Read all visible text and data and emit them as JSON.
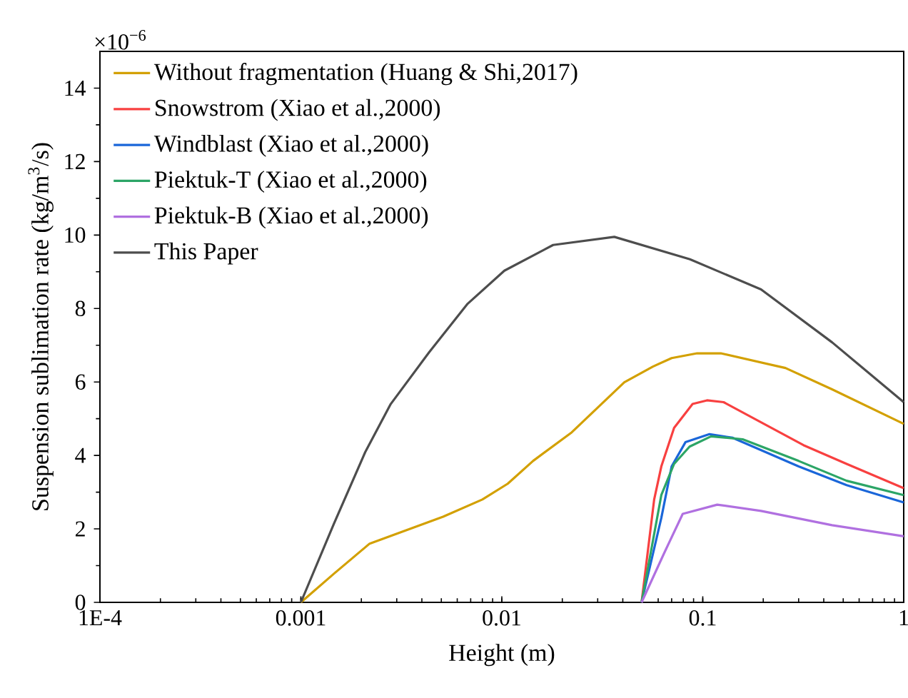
{
  "chart_data": {
    "type": "line",
    "xlabel": "Height (m)",
    "ylabel": "Suspension sublimation rate (kg/m$^{3}$/s)",
    "annotations": [
      "×10$^{−6}$"
    ],
    "log": "x",
    "legend": "top left",
    "grid": false,
    "xlim": [
      0.0001,
      1
    ],
    "xticks": [
      {
        "value": 0.0001,
        "label": "1E-4"
      },
      0.001,
      0.01,
      0.1,
      1
    ],
    "ylim": [
      0,
      15
    ],
    "yticks": [
      0,
      2,
      4,
      6,
      8,
      10,
      12,
      14
    ],
    "series": [
      {
        "name": "Without fragmentation (Huang & Shi,2017)",
        "color": "#d3a000",
        "x": [
          0.001,
          0.00146,
          0.0022,
          0.0051,
          0.008,
          0.0107,
          0.0143,
          0.0223,
          0.0407,
          0.0565,
          0.07,
          0.0937,
          0.123,
          0.258,
          0.44,
          1
        ],
        "values": [
          0,
          0.78,
          1.6,
          2.33,
          2.8,
          3.23,
          3.85,
          4.63,
          5.99,
          6.42,
          6.65,
          6.78,
          6.78,
          6.38,
          5.8,
          4.86
        ]
      },
      {
        "name": "Snowstrom (Xiao et al.,2000)",
        "color": "#f84040",
        "x": [
          0.0496,
          0.0573,
          0.0622,
          0.072,
          0.089,
          0.105,
          0.127,
          0.317,
          0.52,
          1
        ],
        "values": [
          0,
          2.8,
          3.7,
          4.75,
          5.4,
          5.5,
          5.45,
          4.28,
          3.77,
          3.11
        ]
      },
      {
        "name": "Windblast (Xiao et al.,2000)",
        "color": "#1a66d9",
        "x": [
          0.0496,
          0.0622,
          0.07,
          0.082,
          0.108,
          0.141,
          0.3,
          0.52,
          1
        ],
        "values": [
          0,
          2.3,
          3.7,
          4.36,
          4.58,
          4.48,
          3.7,
          3.19,
          2.72
        ]
      },
      {
        "name": "Piektuk-T (Xiao et al.,2000)",
        "color": "#2ca566",
        "x": [
          0.0496,
          0.0622,
          0.072,
          0.086,
          0.11,
          0.158,
          0.3,
          0.52,
          1
        ],
        "values": [
          0,
          2.92,
          3.77,
          4.24,
          4.52,
          4.44,
          3.85,
          3.31,
          2.92
        ]
      },
      {
        "name": "Piektuk-B (Xiao et al.,2000)",
        "color": "#b070e0",
        "x": [
          0.0496,
          0.0645,
          0.0795,
          0.118,
          0.195,
          0.44,
          1
        ],
        "values": [
          0,
          1.36,
          2.41,
          2.66,
          2.49,
          2.1,
          1.8
        ]
      },
      {
        "name": "This Paper",
        "color": "#4d4d4d",
        "x": [
          0.001,
          0.00146,
          0.00209,
          0.0028,
          0.00435,
          0.00676,
          0.0103,
          0.018,
          0.0363,
          0.0863,
          0.195,
          0.44,
          1
        ],
        "values": [
          0,
          2.14,
          4.09,
          5.4,
          6.81,
          8.13,
          9.03,
          9.73,
          9.95,
          9.34,
          8.52,
          7.08,
          5.45
        ]
      }
    ]
  }
}
